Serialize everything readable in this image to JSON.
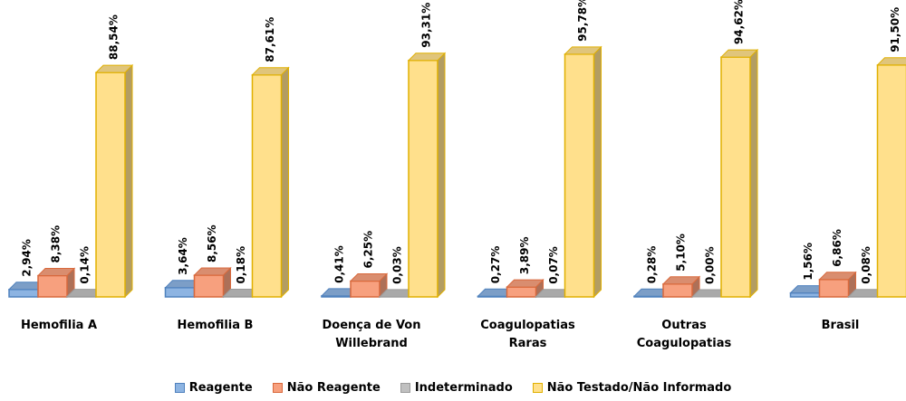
{
  "chart_data": {
    "type": "bar3d",
    "categories": [
      "Hemofilia A",
      "Hemofilia B",
      "Doença de Von Willebrand",
      "Coagulopatias Raras",
      "Outras Coagulopatias",
      "Brasil"
    ],
    "series": [
      {
        "name": "Reagente",
        "color": "#8db4e2",
        "values": [
          2.94,
          3.64,
          0.41,
          0.27,
          0.28,
          1.56
        ],
        "value_labels": [
          "2,94%",
          "3,64%",
          "0,41%",
          "0,27%",
          "0,28%",
          "1,56%"
        ]
      },
      {
        "name": "Não Reagente",
        "color": "#f7a07e",
        "values": [
          8.38,
          8.56,
          6.25,
          3.89,
          5.1,
          6.86
        ],
        "value_labels": [
          "8,38%",
          "8,56%",
          "6,25%",
          "3,89%",
          "5,10%",
          "6,86%"
        ]
      },
      {
        "name": "Indeterminado",
        "color": "#c0c0c0",
        "values": [
          0.14,
          0.18,
          0.03,
          0.07,
          0.0,
          0.08
        ],
        "value_labels": [
          "0,14%",
          "0,18%",
          "0,03%",
          "0,07%",
          "0,00%",
          "0,08%"
        ]
      },
      {
        "name": "Não Testado/Não Informado",
        "color": "#ffe08c",
        "values": [
          88.54,
          87.61,
          93.31,
          95.78,
          94.62,
          91.5
        ],
        "value_labels": [
          "88,54%",
          "87,61%",
          "93,31%",
          "95,78%",
          "94,62%",
          "91,50%"
        ]
      }
    ]
  }
}
